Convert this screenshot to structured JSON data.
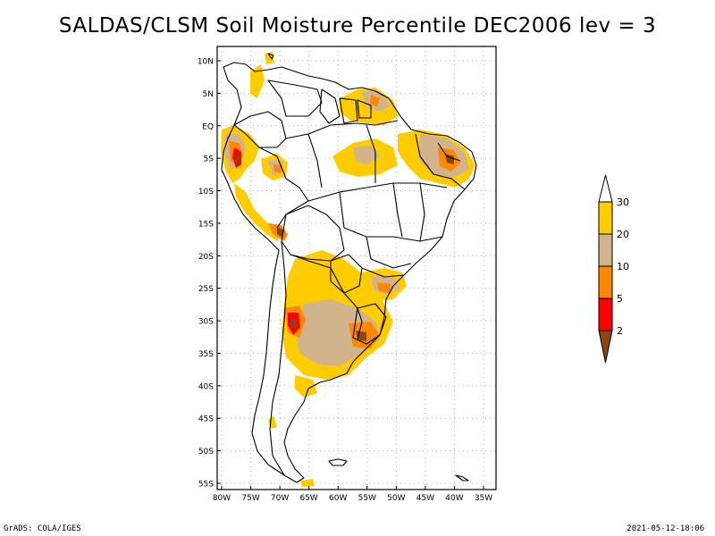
{
  "title": "SALDAS/CLSM Soil Moisture Percentile DEC2006 lev = 3",
  "map": {
    "lat_labels": [
      "10N",
      "5N",
      "EQ",
      "5S",
      "10S",
      "15S",
      "20S",
      "25S",
      "30S",
      "35S",
      "40S",
      "45S",
      "50S",
      "55S"
    ],
    "lon_labels": [
      "80W",
      "75W",
      "70W",
      "65W",
      "60W",
      "55W",
      "50W",
      "45W",
      "40W",
      "35W"
    ],
    "region": "South America"
  },
  "legend": {
    "levels": [
      "2",
      "5",
      "10",
      "20",
      "30"
    ],
    "colors": {
      "below_2": "#8b4513",
      "2_5": "#ff0000",
      "5_10": "#ff8800",
      "10_20": "#d2b48c",
      "20_30": "#ffcc00",
      "above_30": "#ffffff"
    }
  },
  "footer": {
    "left": "GrADS: COLA/IGES",
    "right": "2021-05-12-18:06"
  }
}
